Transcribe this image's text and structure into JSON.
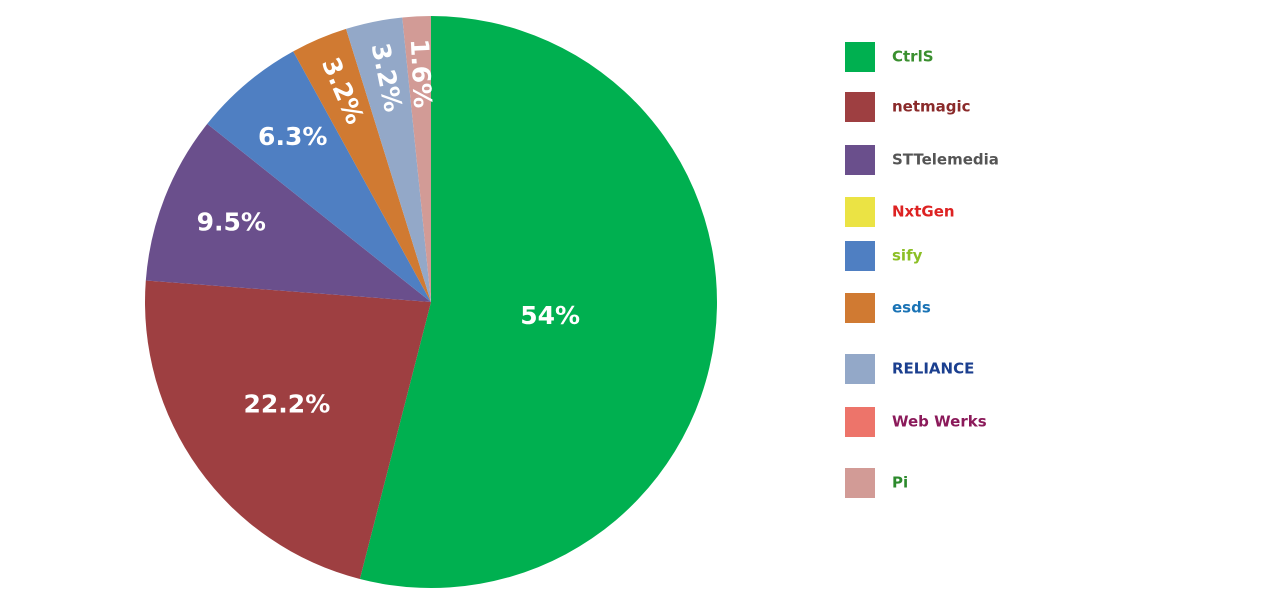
{
  "chart_data": {
    "type": "pie",
    "categories": [
      "CtrlS",
      "netmagic",
      "STTelemedia",
      "NxtGen",
      "sify",
      "esds",
      "RELIANCE",
      "Web Werks",
      "Pi"
    ],
    "values": [
      54,
      22.2,
      9.5,
      0,
      6.3,
      3.2,
      3.2,
      0,
      1.6
    ],
    "value_labels": [
      "54%",
      "22.2%",
      "9.5%",
      null,
      "6.3%",
      "3.2%",
      "3.2%",
      null,
      "1.6%"
    ],
    "colors": [
      "#00b050",
      "#9e3f41",
      "#6a4f8c",
      "#ebe344",
      "#4f7fc2",
      "#d07a32",
      "#93a8c8",
      "#ed746a",
      "#d29b96"
    ],
    "legend": "right"
  }
}
